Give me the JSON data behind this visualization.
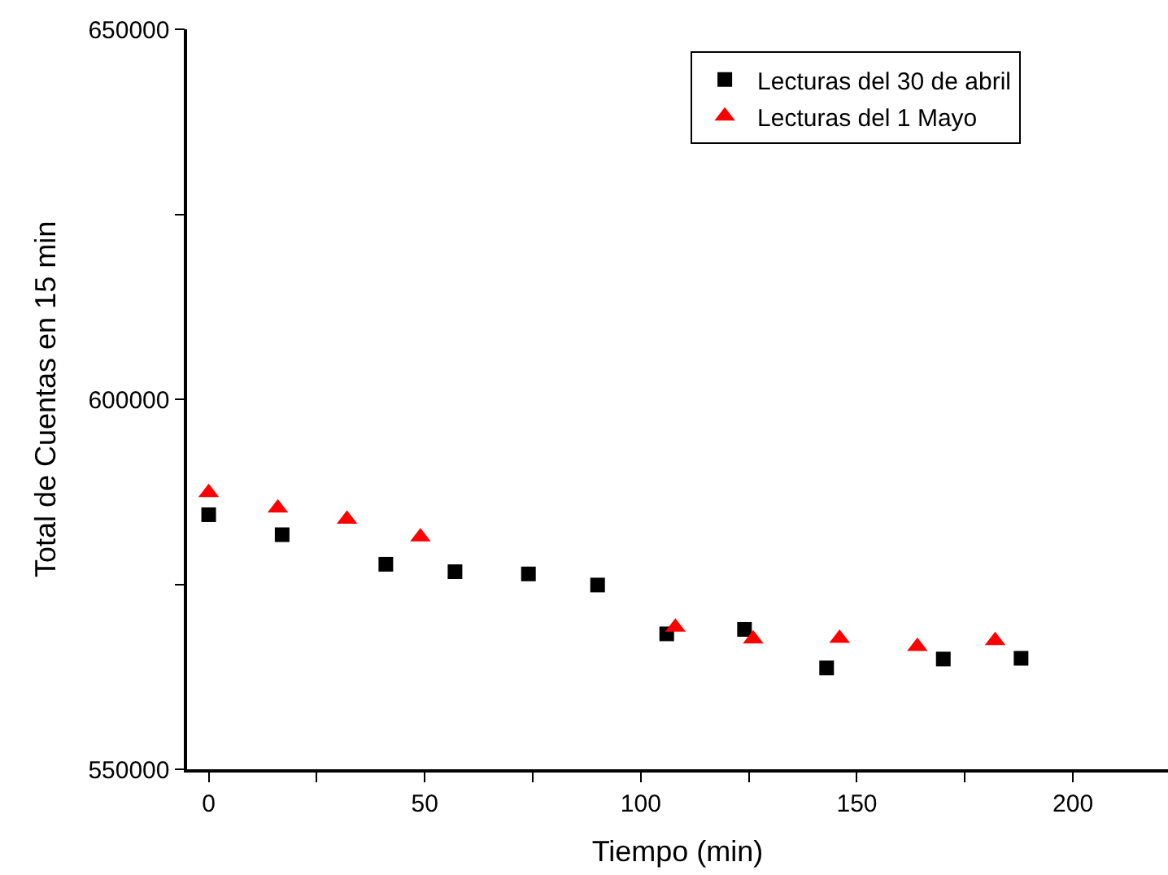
{
  "chart_data": {
    "type": "scatter",
    "xlabel": "Tiempo (min)",
    "ylabel": "Total de Cuentas en 15 min",
    "xlim": [
      -5,
      222
    ],
    "xticks": [
      0,
      {
        "value": 25,
        "label": null
      },
      50,
      {
        "value": 75,
        "label": null
      },
      100,
      {
        "value": 125,
        "label": null
      },
      150,
      {
        "value": 175,
        "label": null
      },
      200
    ],
    "ylim": [
      550000,
      650000
    ],
    "yticks": [
      550000,
      {
        "value": 575000,
        "label": null
      },
      600000,
      {
        "value": 625000,
        "label": null
      },
      650000
    ],
    "legend": "top right",
    "series": [
      {
        "name": "Lecturas del 30 de abril",
        "color": "#000000",
        "marker": "square",
        "x": [
          0,
          17,
          41,
          57,
          74,
          90,
          106,
          124,
          143,
          170,
          188
        ],
        "values": [
          584400,
          581700,
          577700,
          576700,
          576400,
          574900,
          568300,
          568900,
          563700,
          564900,
          565000
        ]
      },
      {
        "name": "Lecturas del 1 Mayo",
        "color": "#ff0000",
        "marker": "triangle",
        "x": [
          0,
          16,
          32,
          49,
          108,
          126,
          146,
          164,
          182
        ],
        "values": [
          587400,
          585300,
          583800,
          581400,
          569200,
          567600,
          567700,
          566600,
          567400
        ]
      }
    ]
  }
}
